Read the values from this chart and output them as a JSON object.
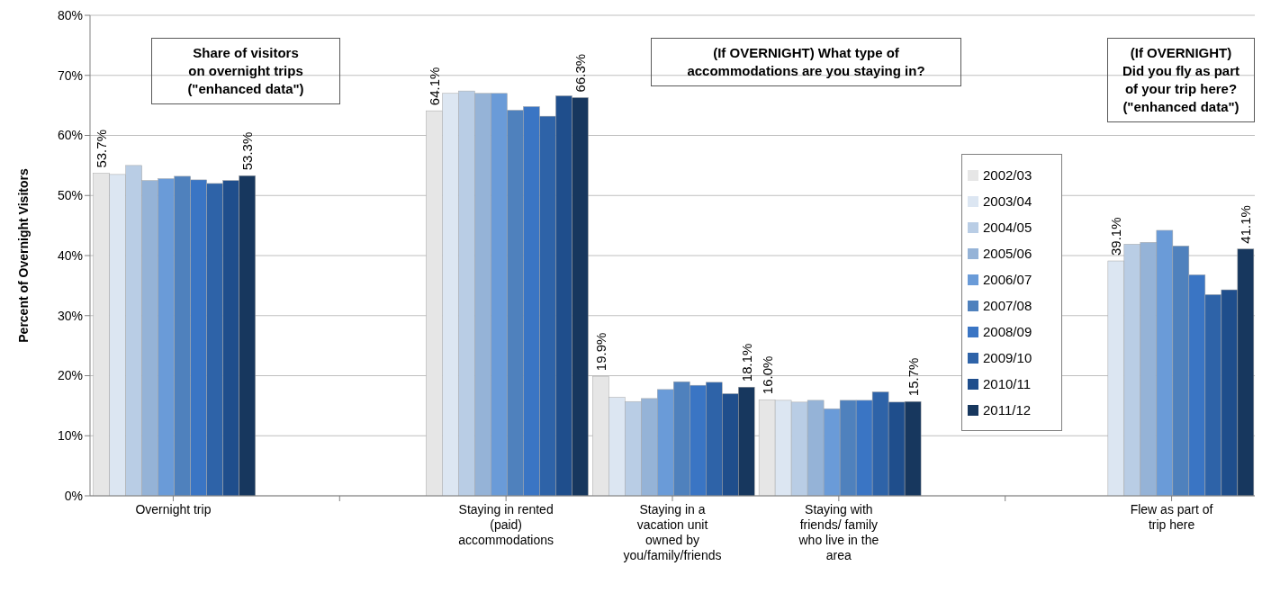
{
  "chart_data": {
    "type": "bar",
    "ylabel": "Percent of Overnight Visitors",
    "categories": [
      "Overnight trip",
      null,
      "Staying in rented (paid) accommodations",
      "Staying in a vacation unit owned by you/family/friends",
      "Staying with friends/ family who live in the area",
      null,
      "Flew as part of trip here"
    ],
    "ylim": [
      0,
      80
    ],
    "yticks": [
      {
        "value": 0,
        "label": "0%"
      },
      {
        "value": 10,
        "label": "10%"
      },
      {
        "value": 20,
        "label": "20%"
      },
      {
        "value": 30,
        "label": "30%"
      },
      {
        "value": 40,
        "label": "40%"
      },
      {
        "value": 50,
        "label": "50%"
      },
      {
        "value": 60,
        "label": "60%"
      },
      {
        "value": 70,
        "label": "70%"
      },
      {
        "value": 80,
        "label": "80%"
      }
    ],
    "grid": "y",
    "legend": "right",
    "annotations": [
      "Share of visitors\non overnight trips\n(\"enhanced data\")",
      "(If OVERNIGHT) What type of\naccommodations are you staying in?",
      "(If OVERNIGHT)\nDid you fly as part\nof your trip here?\n(\"enhanced data\")"
    ],
    "series": [
      {
        "name": "2002/03",
        "color": "#e6e6e6",
        "values": [
          53.7,
          null,
          64.1,
          19.9,
          16.0,
          null,
          null
        ],
        "value_labels": [
          "53.7%",
          null,
          "64.1%",
          "19.9%",
          "16.0%",
          null,
          null
        ]
      },
      {
        "name": "2003/04",
        "color": "#dce6f2",
        "values": [
          53.5,
          null,
          67.0,
          16.4,
          15.9,
          null,
          39.1
        ],
        "value_labels": [
          null,
          null,
          null,
          null,
          null,
          null,
          "39.1%"
        ]
      },
      {
        "name": "2004/05",
        "color": "#b9cde5",
        "values": [
          55.0,
          null,
          67.4,
          15.7,
          15.6,
          null,
          41.9
        ]
      },
      {
        "name": "2005/06",
        "color": "#95b3d7",
        "values": [
          52.5,
          null,
          67.0,
          16.2,
          15.9,
          null,
          42.2
        ]
      },
      {
        "name": "2006/07",
        "color": "#6a9bd8",
        "values": [
          52.8,
          null,
          67.0,
          17.7,
          14.5,
          null,
          44.2
        ]
      },
      {
        "name": "2007/08",
        "color": "#4f81bd",
        "values": [
          53.2,
          null,
          64.2,
          19.0,
          15.9,
          null,
          41.6
        ]
      },
      {
        "name": "2008/09",
        "color": "#3a75c4",
        "values": [
          52.6,
          null,
          64.8,
          18.4,
          15.9,
          null,
          36.8
        ]
      },
      {
        "name": "2009/10",
        "color": "#2e63a8",
        "values": [
          52.0,
          null,
          63.2,
          18.9,
          17.3,
          null,
          33.5
        ]
      },
      {
        "name": "2010/11",
        "color": "#1f4e8c",
        "values": [
          52.5,
          null,
          66.6,
          17.0,
          15.6,
          null,
          34.3
        ]
      },
      {
        "name": "2011/12",
        "color": "#17375e",
        "values": [
          53.3,
          null,
          66.3,
          18.1,
          15.7,
          null,
          41.1
        ],
        "value_labels": [
          "53.3%",
          null,
          "66.3%",
          "18.1%",
          "15.7%",
          null,
          "41.1%"
        ]
      }
    ]
  }
}
